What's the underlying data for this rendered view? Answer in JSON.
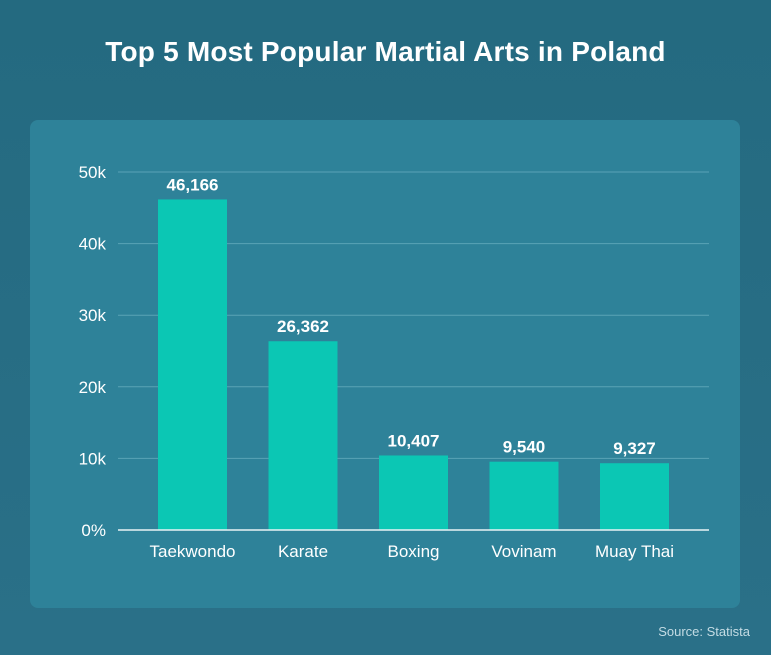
{
  "chart_data": {
    "type": "bar",
    "title": "Top 5 Most Popular Martial Arts in Poland",
    "categories": [
      "Taekwondo",
      "Karate",
      "Boxing",
      "Vovinam",
      "Muay Thai"
    ],
    "values": [
      46166,
      26362,
      10407,
      9540,
      9327
    ],
    "value_labels": [
      "46,166",
      "26,362",
      "10,407",
      "9,540",
      "9,327"
    ],
    "ylim": [
      0,
      50000
    ],
    "yticks": [
      0,
      10000,
      20000,
      30000,
      40000,
      50000
    ],
    "ytick_labels": [
      "0%",
      "10k",
      "20k",
      "30k",
      "40k",
      "50k"
    ],
    "xlabel": "",
    "ylabel": "",
    "grid": true,
    "bar_color": "#0bc7b4"
  },
  "source": "Source: Statista",
  "colors": {
    "background": "#266d84",
    "panel": "#2e8299",
    "gridline": "#5aa3b6",
    "axis": "#e8f3f6",
    "text": "#ffffff"
  }
}
